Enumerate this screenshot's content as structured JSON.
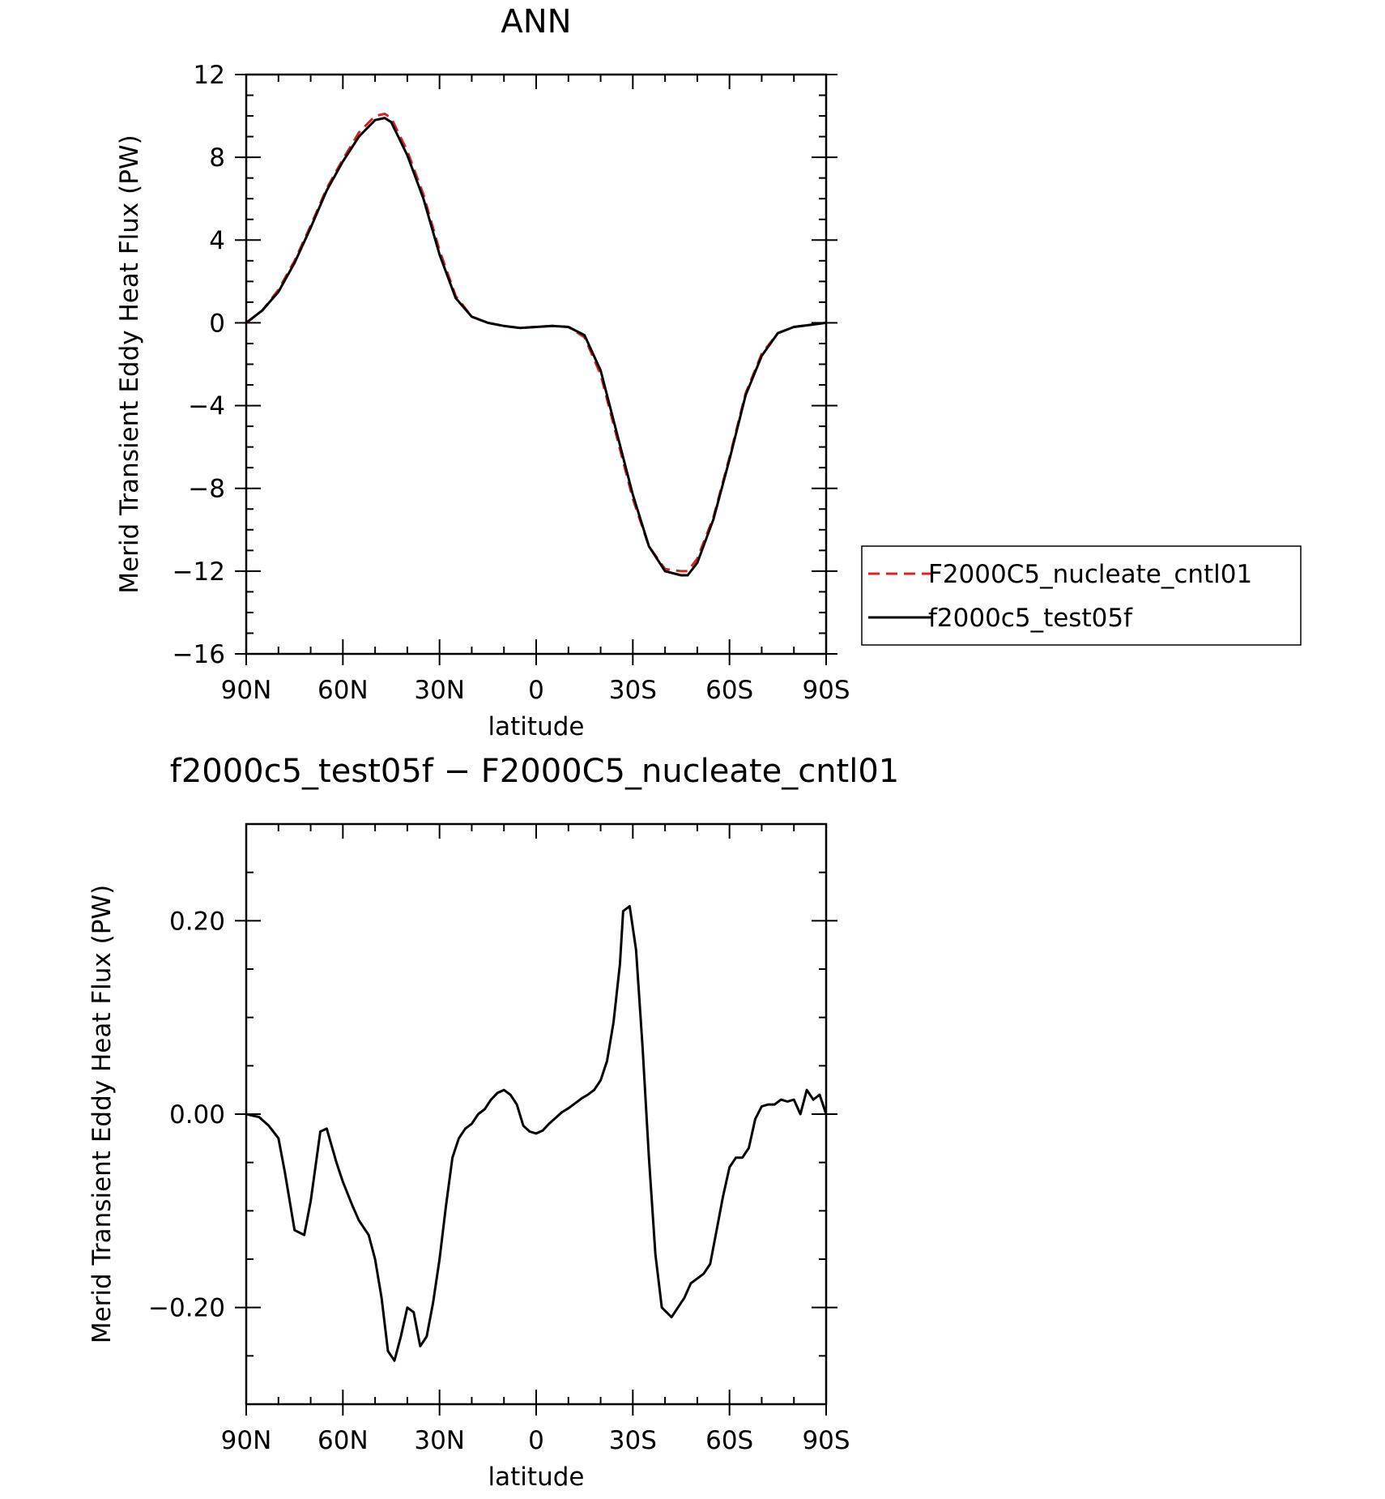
{
  "chart_data": [
    {
      "type": "line",
      "title": "ANN",
      "xlabel": "latitude",
      "ylabel": "Merid Transient Eddy Heat Flux (PW)",
      "xlim": [
        90,
        -90
      ],
      "ylim": [
        -16,
        12
      ],
      "xticks": [
        90,
        60,
        30,
        0,
        -30,
        -60,
        -90
      ],
      "xtick_labels": [
        "90N",
        "60N",
        "30N",
        "0",
        "30S",
        "60S",
        "90S"
      ],
      "yticks": [
        12,
        8,
        4,
        0,
        -4,
        -8,
        -12,
        -16
      ],
      "ytick_labels": [
        "12",
        "8",
        "4",
        "0",
        "−4",
        "−8",
        "−12",
        "−16"
      ],
      "grid": false,
      "legend": "right",
      "series": [
        {
          "name": "F2000C5_nucleate_cntl01",
          "color": "#e02020",
          "dash": "dashed",
          "x": [
            90,
            85,
            80,
            75,
            70,
            65,
            60,
            55,
            50,
            47,
            45,
            40,
            35,
            30,
            25,
            20,
            15,
            10,
            5,
            0,
            -5,
            -10,
            -15,
            -20,
            -25,
            -30,
            -35,
            -40,
            -45,
            -47,
            -50,
            -55,
            -60,
            -65,
            -70,
            -75,
            -80,
            -85,
            -90
          ],
          "y": [
            0,
            0.6,
            1.6,
            3.0,
            4.7,
            6.5,
            7.9,
            9.2,
            10.0,
            10.1,
            9.9,
            8.3,
            6.2,
            3.5,
            1.3,
            0.3,
            0.0,
            -0.15,
            -0.25,
            -0.2,
            -0.15,
            -0.2,
            -0.7,
            -2.5,
            -5.5,
            -8.5,
            -10.8,
            -11.9,
            -12.0,
            -12.0,
            -11.4,
            -9.4,
            -6.5,
            -3.4,
            -1.5,
            -0.5,
            -0.2,
            -0.1,
            0
          ]
        },
        {
          "name": "f2000c5_test05f",
          "color": "#000000",
          "dash": "solid",
          "x": [
            90,
            85,
            80,
            75,
            70,
            65,
            60,
            55,
            50,
            47,
            45,
            40,
            35,
            30,
            25,
            20,
            15,
            10,
            5,
            0,
            -5,
            -10,
            -15,
            -20,
            -25,
            -30,
            -35,
            -40,
            -45,
            -47,
            -50,
            -55,
            -60,
            -65,
            -70,
            -75,
            -80,
            -85,
            -90
          ],
          "y": [
            0,
            0.6,
            1.5,
            2.9,
            4.6,
            6.4,
            7.8,
            9.0,
            9.8,
            9.9,
            9.7,
            8.1,
            6.0,
            3.3,
            1.2,
            0.3,
            0.0,
            -0.15,
            -0.25,
            -0.2,
            -0.15,
            -0.2,
            -0.6,
            -2.3,
            -5.3,
            -8.3,
            -10.8,
            -12.0,
            -12.2,
            -12.2,
            -11.6,
            -9.5,
            -6.6,
            -3.5,
            -1.6,
            -0.5,
            -0.2,
            -0.1,
            0
          ]
        }
      ]
    },
    {
      "type": "line",
      "title": "f2000c5_test05f − F2000C5_nucleate_cntl01",
      "xlabel": "latitude",
      "ylabel": "Merid Transient Eddy Heat Flux (PW)",
      "xlim": [
        90,
        -90
      ],
      "ylim": [
        -0.3,
        0.3
      ],
      "xticks": [
        90,
        60,
        30,
        0,
        -30,
        -60,
        -90
      ],
      "xtick_labels": [
        "90N",
        "60N",
        "30N",
        "0",
        "30S",
        "60S",
        "90S"
      ],
      "yticks": [
        0.2,
        0.0,
        -0.2
      ],
      "ytick_labels": [
        "0.20",
        "0.00",
        "−0.20"
      ],
      "grid": false,
      "series": [
        {
          "color": "#000000",
          "dash": "solid",
          "x": [
            90,
            86,
            83,
            80,
            78,
            75,
            72,
            70,
            67,
            65,
            62,
            60,
            57,
            55,
            52,
            50,
            48,
            46,
            44,
            42,
            40,
            38,
            36,
            34,
            32,
            30,
            28,
            26,
            24,
            22,
            20,
            18,
            16,
            14,
            12,
            10,
            8,
            6,
            4,
            2,
            0,
            -2,
            -4,
            -6,
            -8,
            -10,
            -12,
            -14,
            -16,
            -18,
            -20,
            -22,
            -24,
            -26,
            -27,
            -29,
            -31,
            -33,
            -35,
            -37,
            -39,
            -42,
            -44,
            -46,
            -48,
            -50,
            -52,
            -54,
            -56,
            -58,
            -60,
            -62,
            -64,
            -66,
            -68,
            -70,
            -72,
            -74,
            -76,
            -78,
            -80,
            -82,
            -84,
            -86,
            -88,
            -90
          ],
          "y": [
            0,
            -0.003,
            -0.012,
            -0.025,
            -0.06,
            -0.12,
            -0.125,
            -0.09,
            -0.018,
            -0.015,
            -0.05,
            -0.07,
            -0.095,
            -0.11,
            -0.125,
            -0.15,
            -0.19,
            -0.245,
            -0.255,
            -0.23,
            -0.2,
            -0.205,
            -0.24,
            -0.23,
            -0.195,
            -0.15,
            -0.095,
            -0.045,
            -0.025,
            -0.015,
            -0.01,
            0.0,
            0.005,
            0.015,
            0.022,
            0.025,
            0.02,
            0.01,
            -0.012,
            -0.018,
            -0.02,
            -0.017,
            -0.01,
            -0.004,
            0.002,
            0.006,
            0.011,
            0.016,
            0.02,
            0.025,
            0.035,
            0.055,
            0.095,
            0.155,
            0.21,
            0.215,
            0.17,
            0.07,
            -0.045,
            -0.145,
            -0.2,
            -0.21,
            -0.2,
            -0.19,
            -0.175,
            -0.17,
            -0.165,
            -0.155,
            -0.12,
            -0.085,
            -0.055,
            -0.045,
            -0.045,
            -0.035,
            -0.005,
            0.008,
            0.01,
            0.01,
            0.015,
            0.013,
            0.015,
            0.0,
            0.025,
            0.015,
            0.02,
            0
          ]
        }
      ]
    }
  ]
}
